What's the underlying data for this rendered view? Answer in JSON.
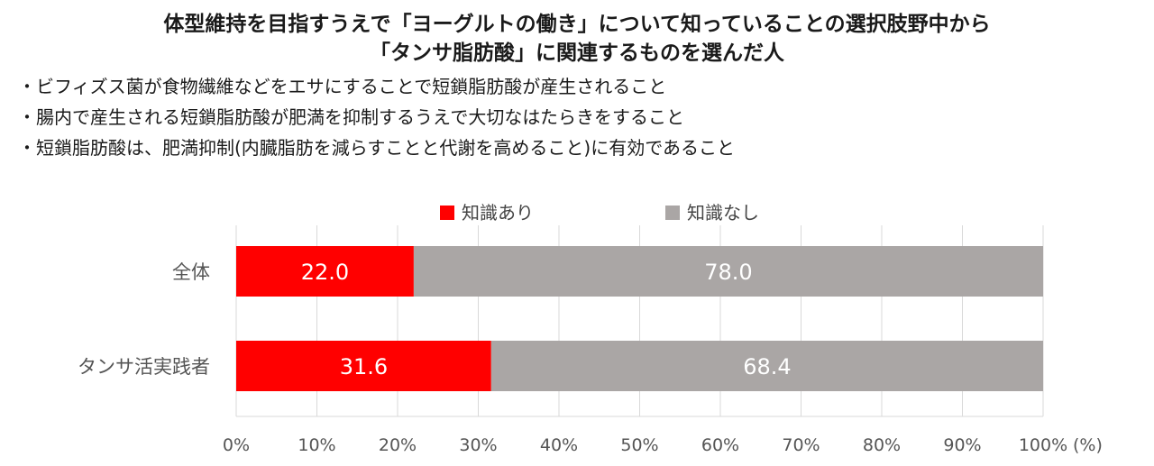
{
  "title": {
    "line1": "体型維持を目指すうえで「ヨーグルトの働き」について知っていることの選択肢野中から",
    "line2": "「タンサ脂肪酸」に関連するものを選んだ人"
  },
  "notes": [
    "・ビフィズス菌が食物繊維などをエサにすることで短鎖脂肪酸が産生されること",
    "・腸内で産生される短鎖脂肪酸が肥満を抑制するうえで大切なはたらきをすること",
    "・短鎖脂肪酸は、肥満抑制(内臓脂肪を減らすことと代謝を高めること)に有効であること"
  ],
  "chart_data": {
    "type": "bar",
    "orientation": "horizontal",
    "stacked": true,
    "categories": [
      "全体",
      "タンサ活実践者"
    ],
    "series": [
      {
        "name": "知識あり",
        "values": [
          22.0,
          31.6
        ],
        "color": "#ff0000"
      },
      {
        "name": "知識なし",
        "values": [
          78.0,
          68.4
        ],
        "color": "#aaa6a5"
      }
    ],
    "xlim": [
      0,
      100
    ],
    "xticks": [
      "0%",
      "10%",
      "20%",
      "30%",
      "40%",
      "50%",
      "60%",
      "70%",
      "80%",
      "90%",
      "100%"
    ],
    "unit": "(%)",
    "grid": true,
    "legend_position": "top"
  }
}
